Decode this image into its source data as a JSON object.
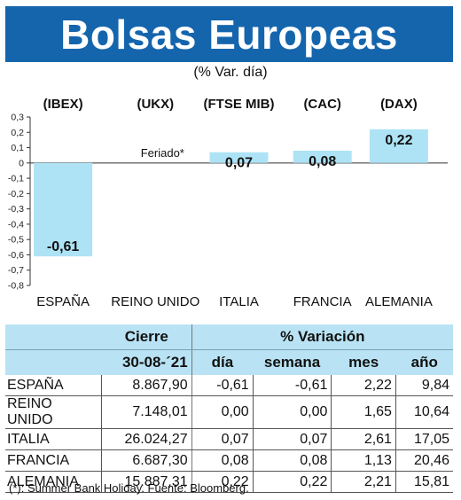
{
  "header": {
    "title": "Bolsas Europeas",
    "subtitle": "(% Var. día)"
  },
  "chart_data": {
    "type": "bar",
    "indices": [
      "(IBEX)",
      "(UKX)",
      "(FTSE MIB)",
      "(CAC)",
      "(DAX)"
    ],
    "categories": [
      "ESPAÑA",
      "REINO UNIDO",
      "ITALIA",
      "FRANCIA",
      "ALEMANIA"
    ],
    "values": [
      -0.61,
      null,
      0.07,
      0.08,
      0.22
    ],
    "data_labels": [
      "-0,61",
      "",
      "0,07",
      "0,08",
      "0,22"
    ],
    "annotations": [
      {
        "category": "REINO UNIDO",
        "text": "Feriado*"
      }
    ],
    "ylim": [
      -0.8,
      0.3
    ],
    "yticks": [
      0.3,
      0.2,
      0.1,
      0,
      -0.1,
      -0.2,
      -0.3,
      -0.4,
      -0.5,
      -0.6,
      -0.7,
      -0.8
    ],
    "ytick_labels": [
      "0,3",
      "0,2",
      "0,1",
      "0",
      "-0,1",
      "-0,2",
      "-0,3",
      "-0,4",
      "-0,5",
      "-0,6",
      "-0,7",
      "-0,8"
    ],
    "bar_color": "#aee3f5",
    "grid": false
  },
  "table": {
    "header_cierre": "Cierre",
    "header_variacion": "% Variación",
    "header_fecha": "30-08-´21",
    "columns": [
      "día",
      "semana",
      "mes",
      "año"
    ],
    "rows": [
      {
        "country": "ESPAÑA",
        "cierre": "8.867,90",
        "dia": "-0,61",
        "semana": "-0,61",
        "mes": "2,22",
        "ano": "9,84"
      },
      {
        "country": "REINO UNIDO",
        "cierre": "7.148,01",
        "dia": "0,00",
        "semana": "0,00",
        "mes": "1,65",
        "ano": "10,64"
      },
      {
        "country": "ITALIA",
        "cierre": "26.024,27",
        "dia": "0,07",
        "semana": "0,07",
        "mes": "2,61",
        "ano": "17,05"
      },
      {
        "country": "FRANCIA",
        "cierre": "6.687,30",
        "dia": "0,08",
        "semana": "0,08",
        "mes": "1,13",
        "ano": "20,46"
      },
      {
        "country": "ALEMANIA",
        "cierre": "15.887,31",
        "dia": "0,22",
        "semana": "0,22",
        "mes": "2,21",
        "ano": "15,81"
      }
    ]
  },
  "footnote": "(*): Summer Bank Holiday. Fuente: Bloomberg."
}
